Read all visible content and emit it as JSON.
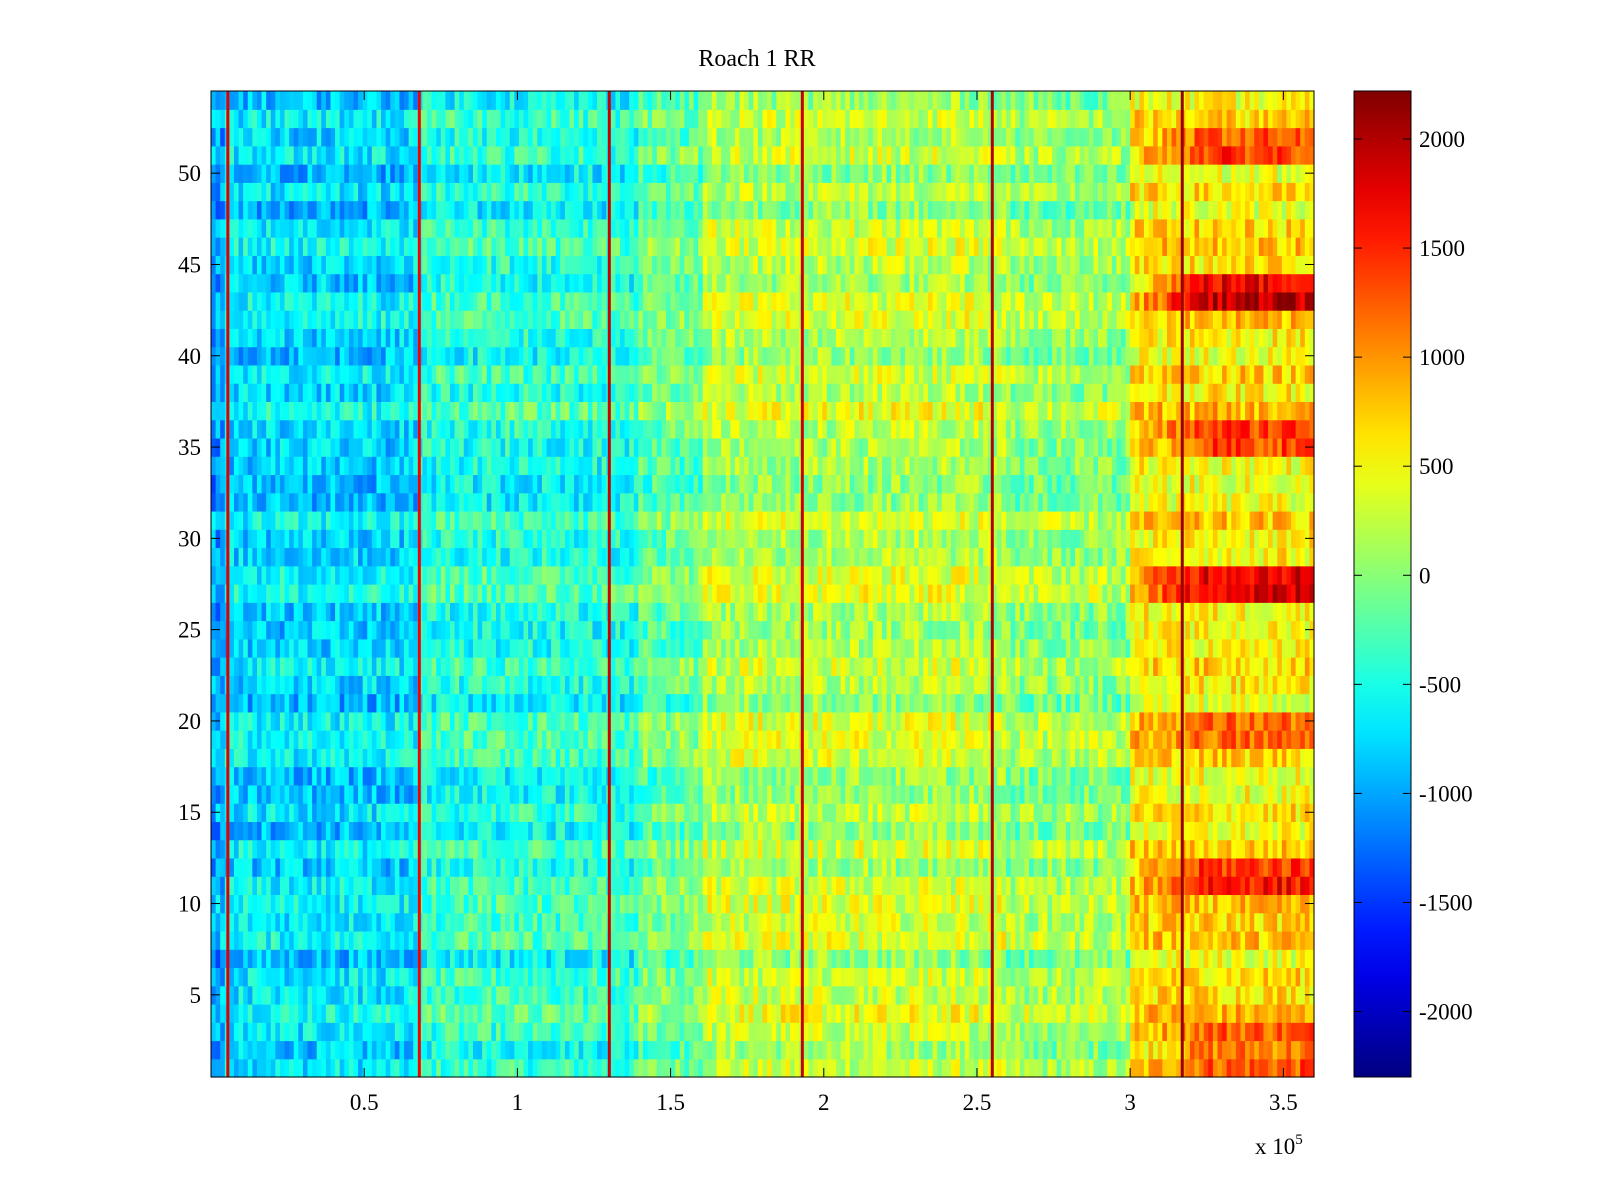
{
  "chart_data": {
    "type": "heatmap",
    "title": "Roach 1 RR",
    "xlabel": "",
    "ylabel": "",
    "x_exponent_label": "x 10",
    "x_exponent_power": "5",
    "xlim": [
      0,
      3.6
    ],
    "ylim": [
      0.5,
      54.5
    ],
    "x_ticks": [
      0.5,
      1,
      1.5,
      2,
      2.5,
      3,
      3.5
    ],
    "x_tick_labels": [
      "0.5",
      "1",
      "1.5",
      "2",
      "2.5",
      "3",
      "3.5"
    ],
    "y_ticks": [
      5,
      10,
      15,
      20,
      25,
      30,
      35,
      40,
      45,
      50
    ],
    "y_tick_labels": [
      "5",
      "10",
      "15",
      "20",
      "25",
      "30",
      "35",
      "40",
      "45",
      "50"
    ],
    "colorbar": {
      "clim": [
        -2300,
        2220
      ],
      "ticks": [
        -2000,
        -1500,
        -1000,
        -500,
        0,
        500,
        1000,
        1500,
        2000
      ],
      "tick_labels": [
        "-2000",
        "-1500",
        "-1000",
        "-500",
        "0",
        "500",
        "1000",
        "1500",
        "2000"
      ],
      "colormap": "jet"
    },
    "rows": 54,
    "column_bands": [
      {
        "x_range": [
          0,
          0.05
        ],
        "typical_value": -1000
      },
      {
        "x_range": [
          0.05,
          0.68
        ],
        "typical_value": -750
      },
      {
        "x_range": [
          0.68,
          1.4
        ],
        "typical_value": -450
      },
      {
        "x_range": [
          1.4,
          1.6
        ],
        "typical_value": -150
      },
      {
        "x_range": [
          1.6,
          2.6
        ],
        "typical_value": 200
      },
      {
        "x_range": [
          2.6,
          3.0
        ],
        "typical_value": 50
      },
      {
        "x_range": [
          3.0,
          3.6
        ],
        "typical_value": 600
      }
    ],
    "vertical_spike_lines": [
      {
        "x": 0.055,
        "value": 1800
      },
      {
        "x": 0.68,
        "value": 1700
      },
      {
        "x": 1.3,
        "value": 1900
      },
      {
        "x": 1.93,
        "value": 1900
      },
      {
        "x": 2.55,
        "value": 2000
      },
      {
        "x": 3.17,
        "value": 2100
      }
    ],
    "hot_rows_right": [
      {
        "rows": [
          43,
          44
        ],
        "value": 1800
      },
      {
        "rows": [
          27,
          28
        ],
        "value": 1600
      },
      {
        "rows": [
          35,
          36
        ],
        "value": 1400
      },
      {
        "rows": [
          11,
          12
        ],
        "value": 1500
      },
      {
        "rows": [
          51,
          52
        ],
        "value": 1300
      },
      {
        "rows": [
          1,
          2,
          3
        ],
        "value": 1200
      },
      {
        "rows": [
          19,
          20
        ],
        "value": 1000
      }
    ]
  }
}
